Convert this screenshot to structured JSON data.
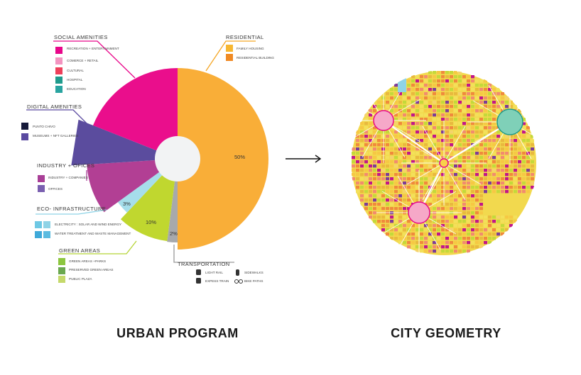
{
  "titles": {
    "left": "URBAN PROGRAM",
    "right": "CITY GEOMETRY"
  },
  "groups": {
    "social": {
      "heading": "SOCIAL AMENITIES",
      "color": "#e8068a",
      "items": [
        "RECREATION + ENTERTAINMENT",
        "COMERCE + RETAIL",
        "CULTURAL",
        "HOSPITAL",
        "EDUCATION"
      ]
    },
    "residential": {
      "heading": "RESIDENTIAL",
      "color": "#f5a623",
      "items": [
        "FAMILY HOUSING",
        "RESIDENTIAL BUILDING"
      ]
    },
    "digital": {
      "heading": "DIGITAL AMENITIES",
      "color": "#5a4aa0",
      "items": [
        "PUNTO CHIVO",
        "MUSEUMS + NFT GALLERIES"
      ]
    },
    "industry": {
      "heading": "INDUSTRY + OFICES",
      "color": "#a93f97",
      "items": [
        "INDUSTRY + COMPANIES",
        "OFFICES"
      ]
    },
    "eco": {
      "heading": "ECO- INFRASTRUCTURE",
      "color": "#8fd3e6",
      "items": [
        "ELECTRICITY : SOLAR AND WIND ENERGY",
        "WATER TREATMENT AND WASTE MANAGEMENT"
      ]
    },
    "green": {
      "heading": "GREEN AREAS",
      "color": "#b5d334",
      "items": [
        "GREEN AREAS +PARKS",
        "PRESERVED GREEN AREAS",
        "PUBLIC PLAZA"
      ]
    },
    "transport": {
      "heading": "TRANSPORTATION",
      "color": "#999999",
      "items": [
        "LIGHT RAIL",
        "SIDEWALKS",
        "EXPESS TRAIN",
        "BIKE PATHS"
      ]
    }
  },
  "chart_data": {
    "type": "pie",
    "series": [
      {
        "group": "residential",
        "label": "50%",
        "value": 50,
        "color": "#f9ae38"
      },
      {
        "group": "transport",
        "label": "2%",
        "value": 2,
        "color": "#a7a9ac"
      },
      {
        "group": "green",
        "label": "10%",
        "value": 10,
        "color": "#c0d72f"
      },
      {
        "group": "eco",
        "label": "3%",
        "value": 3,
        "color": "#a6deeb"
      },
      {
        "group": "industry",
        "label": "",
        "value": 9,
        "color": "#b23f94"
      },
      {
        "group": "digital",
        "label": "",
        "value": 7,
        "color": "#5b4c9e"
      },
      {
        "group": "social",
        "label": "",
        "value": 19,
        "color": "#ea0e8c"
      }
    ],
    "hole_color": "#f2f3f4"
  },
  "arrow": {
    "glyph": "→"
  }
}
